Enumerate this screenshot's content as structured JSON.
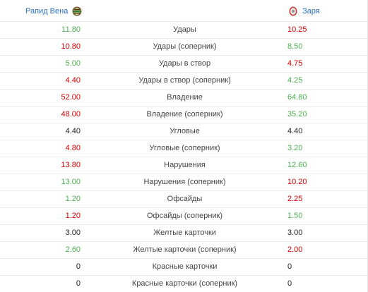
{
  "teams": {
    "home": {
      "name": "Рапид Вена",
      "badge_icon": "rapid-wien-crest-icon"
    },
    "away": {
      "name": "Заря",
      "badge_icon": "zorya-crest-icon"
    }
  },
  "colors": {
    "better": "#4caf50",
    "worse": "#d20000",
    "equal": "#222222",
    "team_link": "#2a6ebb"
  },
  "rows": [
    {
      "label": "Удары",
      "home": "11.80",
      "away": "10.25",
      "home_color": "g",
      "away_color": "r"
    },
    {
      "label": "Удары (соперник)",
      "home": "10.80",
      "away": "8.50",
      "home_color": "r",
      "away_color": "g"
    },
    {
      "label": "Удары в створ",
      "home": "5.00",
      "away": "4.75",
      "home_color": "g",
      "away_color": "r"
    },
    {
      "label": "Удары в створ (соперник)",
      "home": "4.40",
      "away": "4.25",
      "home_color": "r",
      "away_color": "g"
    },
    {
      "label": "Владение",
      "home": "52.00",
      "away": "64.80",
      "home_color": "r",
      "away_color": "g"
    },
    {
      "label": "Владение (соперник)",
      "home": "48.00",
      "away": "35.20",
      "home_color": "r",
      "away_color": "g"
    },
    {
      "label": "Угловые",
      "home": "4.40",
      "away": "4.40",
      "home_color": "b",
      "away_color": "b"
    },
    {
      "label": "Угловые (соперник)",
      "home": "4.80",
      "away": "3.20",
      "home_color": "r",
      "away_color": "g"
    },
    {
      "label": "Нарушения",
      "home": "13.80",
      "away": "12.60",
      "home_color": "r",
      "away_color": "g"
    },
    {
      "label": "Нарушения (соперник)",
      "home": "13.00",
      "away": "10.20",
      "home_color": "g",
      "away_color": "r"
    },
    {
      "label": "Офсайды",
      "home": "1.20",
      "away": "2.25",
      "home_color": "g",
      "away_color": "r"
    },
    {
      "label": "Офсайды (соперник)",
      "home": "1.20",
      "away": "1.50",
      "home_color": "r",
      "away_color": "g"
    },
    {
      "label": "Желтые карточки",
      "home": "3.00",
      "away": "3.00",
      "home_color": "b",
      "away_color": "b"
    },
    {
      "label": "Желтые карточки (соперник)",
      "home": "2.60",
      "away": "2.00",
      "home_color": "g",
      "away_color": "r"
    },
    {
      "label": "Красные карточки",
      "home": "0",
      "away": "0",
      "home_color": "b",
      "away_color": "b"
    },
    {
      "label": "Красные карточки (соперник)",
      "home": "0",
      "away": "0",
      "home_color": "b",
      "away_color": "b"
    }
  ]
}
